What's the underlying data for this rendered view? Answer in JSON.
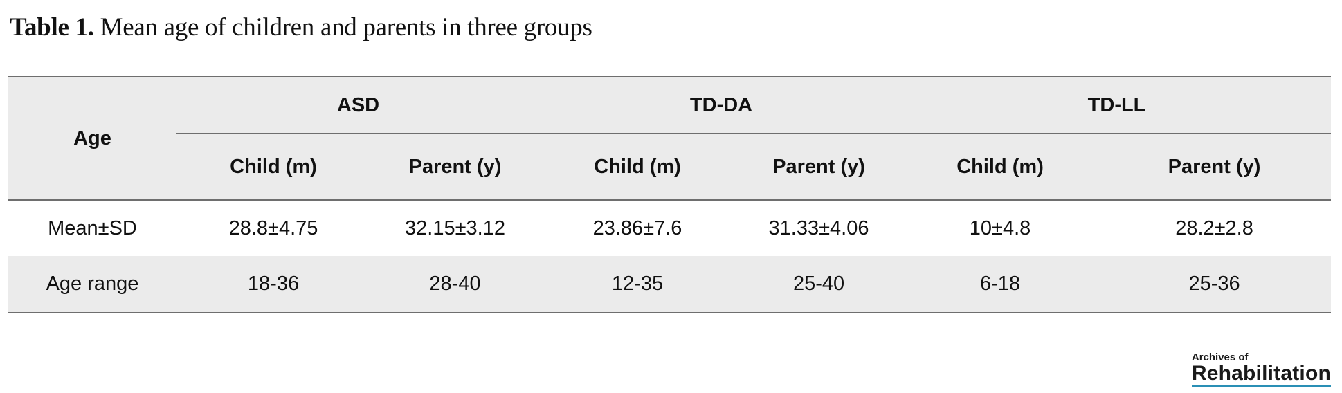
{
  "caption": {
    "label": "Table 1.",
    "text": " Mean age of children and parents in three groups"
  },
  "table": {
    "row_header_label": "Age",
    "groups": [
      "ASD",
      "TD-DA",
      "TD-LL"
    ],
    "subheaders": [
      "Child (m)",
      "Parent (y)",
      "Child (m)",
      "Parent (y)",
      "Child (m)",
      "Parent (y)"
    ],
    "rows": [
      {
        "label": "Mean±SD",
        "cells": [
          "28.8±4.75",
          "32.15±3.12",
          "23.86±7.6",
          "31.33±4.06",
          "10±4.8",
          "28.2±2.8"
        ]
      },
      {
        "label": "Age range",
        "cells": [
          "18-36",
          "28-40",
          "12-35",
          "25-40",
          "6-18",
          "25-36"
        ]
      }
    ]
  },
  "logo": {
    "line1": "Archives of",
    "line2": "Rehabilitation"
  },
  "colors": {
    "header_fill": "#ebebeb",
    "rule": "#6e6e6e",
    "logo_accent": "#2a8fb5"
  }
}
